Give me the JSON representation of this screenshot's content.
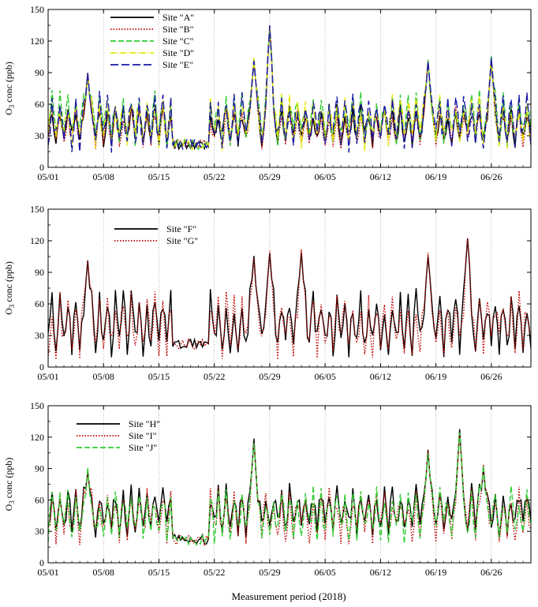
{
  "figure": {
    "xlabel": "Measurement period (2018)"
  },
  "chart_data": [
    {
      "type": "line",
      "xlabel": "",
      "ylabel_main": "O",
      "ylabel_sub": "3",
      "ylabel_rest": " conc (ppb)",
      "ylim": [
        0,
        150
      ],
      "yticks": [
        0,
        30,
        60,
        90,
        120,
        150
      ],
      "x_ticks": [
        "05/01",
        "05/08",
        "05/15",
        "05/22",
        "05/29",
        "06/05",
        "06/12",
        "06/19",
        "06/26"
      ],
      "x_tick_days": [
        0,
        7,
        14,
        21,
        28,
        35,
        42,
        49,
        56
      ],
      "x_range_days": [
        0,
        61
      ],
      "grid": "vertical dotted at x ticks",
      "legend_position": "top-left",
      "series": [
        {
          "name": "Site \"A\"",
          "color": "#000000",
          "style": "solid",
          "base": 40,
          "amp": 13,
          "seed": 11
        },
        {
          "name": "Site \"B\"",
          "color": "#c00000",
          "style": "dotted",
          "base": 38,
          "amp": 13,
          "seed": 23
        },
        {
          "name": "Site \"C\"",
          "color": "#33cc33",
          "style": "dashed",
          "base": 46,
          "amp": 17,
          "seed": 37
        },
        {
          "name": "Site \"D\"",
          "color": "#e6e600",
          "style": "dashdot",
          "base": 43,
          "amp": 17,
          "seed": 41
        },
        {
          "name": "Site \"E\"",
          "color": "#1a1aa6",
          "style": "longdash",
          "base": 43,
          "amp": 18,
          "seed": 53
        }
      ],
      "peaks": [
        [
          5,
          90
        ],
        [
          28,
          136
        ],
        [
          26,
          104
        ],
        [
          48,
          104
        ],
        [
          56,
          106
        ]
      ]
    },
    {
      "type": "line",
      "xlabel": "",
      "ylabel_main": "O",
      "ylabel_sub": "3",
      "ylabel_rest": " conc (ppb)",
      "ylim": [
        0,
        150
      ],
      "yticks": [
        0,
        30,
        60,
        90,
        120,
        150
      ],
      "x_ticks": [
        "05/01",
        "05/08",
        "05/15",
        "05/22",
        "05/29",
        "06/05",
        "06/12",
        "06/19",
        "06/26"
      ],
      "x_tick_days": [
        0,
        7,
        14,
        21,
        28,
        35,
        42,
        49,
        56
      ],
      "x_range_days": [
        0,
        61
      ],
      "grid": "vertical dotted at x ticks",
      "legend_position": "top-left",
      "series": [
        {
          "name": "Site \"F\"",
          "color": "#000000",
          "style": "solid",
          "base": 42,
          "amp": 20,
          "seed": 67
        },
        {
          "name": "Site \"G\"",
          "color": "#c00000",
          "style": "dotted",
          "base": 40,
          "amp": 20,
          "seed": 71
        }
      ],
      "peaks": [
        [
          5,
          104
        ],
        [
          26,
          107
        ],
        [
          28,
          111
        ],
        [
          32,
          113
        ],
        [
          48,
          110
        ],
        [
          53,
          127
        ]
      ]
    },
    {
      "type": "line",
      "xlabel": "Measurement period (2018)",
      "ylabel_main": "O",
      "ylabel_sub": "3",
      "ylabel_rest": " conc (ppb)",
      "ylim": [
        0,
        150
      ],
      "yticks": [
        0,
        30,
        60,
        90,
        120,
        150
      ],
      "x_ticks": [
        "05/01",
        "05/08",
        "05/15",
        "05/22",
        "05/29",
        "06/05",
        "06/12",
        "06/19",
        "06/26"
      ],
      "x_tick_days": [
        0,
        7,
        14,
        21,
        28,
        35,
        42,
        49,
        56
      ],
      "x_range_days": [
        0,
        61
      ],
      "grid": "vertical dotted at x ticks",
      "legend_position": "top-left",
      "series": [
        {
          "name": "Site \"H\"",
          "color": "#000000",
          "style": "solid",
          "base": 50,
          "amp": 16,
          "seed": 83
        },
        {
          "name": "Site \"I\"",
          "color": "#c00000",
          "style": "dotted",
          "base": 45,
          "amp": 17,
          "seed": 89
        },
        {
          "name": "Site \"J\"",
          "color": "#33cc33",
          "style": "dashed",
          "base": 46,
          "amp": 17,
          "seed": 97
        }
      ],
      "peaks": [
        [
          5,
          92
        ],
        [
          26,
          120
        ],
        [
          48,
          109
        ],
        [
          52,
          128
        ],
        [
          55,
          95
        ]
      ]
    }
  ]
}
